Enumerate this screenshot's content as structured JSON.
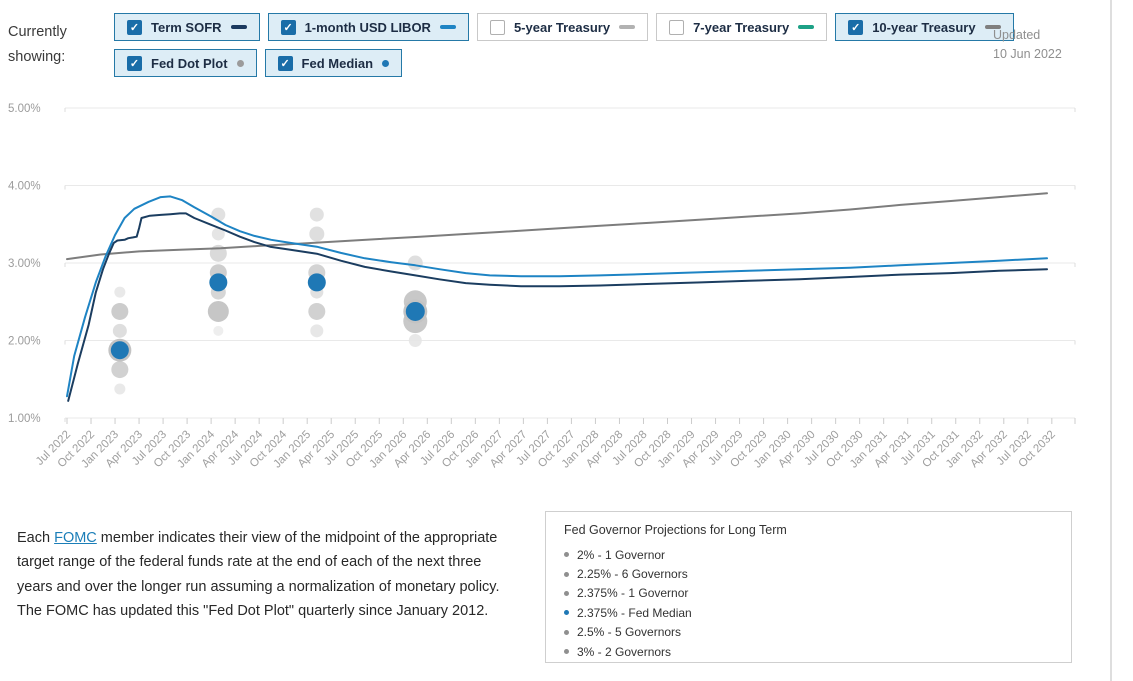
{
  "header": {
    "showing_label": "Currently showing:",
    "updated_label": "Updated",
    "updated_date": "10 Jun 2022",
    "check_icon": "✓",
    "toggle_rows": [
      [
        {
          "label": "Term SOFR",
          "checked": true,
          "indicator": "dash",
          "color": "#1b3a5f"
        },
        {
          "label": "1-month USD LIBOR",
          "checked": true,
          "indicator": "dash",
          "color": "#1e84c4"
        },
        {
          "label": "5-year Treasury",
          "checked": false,
          "indicator": "dash",
          "color": "#b2b2b2"
        },
        {
          "label": "7-year Treasury",
          "checked": false,
          "indicator": "dash",
          "color": "#1da186"
        },
        {
          "label": "10-year Treasury",
          "checked": true,
          "indicator": "dash",
          "color": "#7f7f7f"
        }
      ],
      [
        {
          "label": "Fed Dot Plot",
          "checked": true,
          "indicator": "dot",
          "color": "#9b9b9b"
        },
        {
          "label": "Fed Median",
          "checked": true,
          "indicator": "dot",
          "color": "#1f78b5"
        }
      ]
    ]
  },
  "chart_data": {
    "type": "line",
    "title": "",
    "xlabel": "",
    "ylabel": "",
    "ylim": [
      1,
      5
    ],
    "grid": true,
    "y_ticks": [
      {
        "v": 5,
        "label": "5.00%"
      },
      {
        "v": 4,
        "label": "4.00%"
      },
      {
        "v": 3,
        "label": "3.00%"
      },
      {
        "v": 2,
        "label": "2.00%"
      },
      {
        "v": 1,
        "label": "1.00%"
      }
    ],
    "x_ticks": [
      "Jul 2022",
      "Oct 2022",
      "Jan 2023",
      "Apr 2023",
      "Jul 2023",
      "Oct 2023",
      "Jan 2024",
      "Apr 2024",
      "Jul 2024",
      "Oct 2024",
      "Jan 2025",
      "Apr 2025",
      "Jul 2025",
      "Oct 2025",
      "Jan 2026",
      "Apr 2026",
      "Jul 2026",
      "Oct 2026",
      "Jan 2027",
      "Apr 2027",
      "Jul 2027",
      "Oct 2027",
      "Jan 2028",
      "Apr 2028",
      "Jul 2028",
      "Oct 2028",
      "Jan 2029",
      "Apr 2029",
      "Jul 2029",
      "Oct 2029",
      "Jan 2030",
      "Apr 2030",
      "Jul 2030",
      "Oct 2030",
      "Jan 2031",
      "Apr 2031",
      "Jul 2031",
      "Oct 2031",
      "Jan 2032",
      "Apr 2032",
      "Jul 2032",
      "Oct 2032"
    ],
    "series": [
      {
        "name": "10-year Treasury",
        "color": "#7d7d7d",
        "points": [
          [
            0,
            3.05
          ],
          [
            1.4,
            3.11
          ],
          [
            3,
            3.15
          ],
          [
            4.7,
            3.17
          ],
          [
            6.4,
            3.19
          ],
          [
            8,
            3.22
          ],
          [
            9.7,
            3.25
          ],
          [
            11.4,
            3.28
          ],
          [
            13,
            3.31
          ],
          [
            14.7,
            3.34
          ],
          [
            16.4,
            3.37
          ],
          [
            18,
            3.4
          ],
          [
            20.1,
            3.44
          ],
          [
            22.2,
            3.48
          ],
          [
            24.3,
            3.52
          ],
          [
            26.4,
            3.56
          ],
          [
            28.4,
            3.6
          ],
          [
            30.5,
            3.64
          ],
          [
            32.6,
            3.69
          ],
          [
            34.7,
            3.75
          ],
          [
            36.8,
            3.8
          ],
          [
            38.8,
            3.85
          ],
          [
            40.8,
            3.9
          ]
        ]
      },
      {
        "name": "1-month USD LIBOR",
        "color": "#1e84c4",
        "points": [
          [
            0,
            1.28
          ],
          [
            0.3,
            1.8
          ],
          [
            0.75,
            2.3
          ],
          [
            1.2,
            2.75
          ],
          [
            1.6,
            3.08
          ],
          [
            2.0,
            3.36
          ],
          [
            2.4,
            3.58
          ],
          [
            2.8,
            3.7
          ],
          [
            3.4,
            3.79
          ],
          [
            3.9,
            3.85
          ],
          [
            4.3,
            3.86
          ],
          [
            4.8,
            3.81
          ],
          [
            5.3,
            3.72
          ],
          [
            6.0,
            3.6
          ],
          [
            6.6,
            3.49
          ],
          [
            7.2,
            3.41
          ],
          [
            7.8,
            3.35
          ],
          [
            8.5,
            3.3
          ],
          [
            9.3,
            3.26
          ],
          [
            10.4,
            3.21
          ],
          [
            11.4,
            3.13
          ],
          [
            12.4,
            3.06
          ],
          [
            13.5,
            3.01
          ],
          [
            14.5,
            2.97
          ],
          [
            15.5,
            2.92
          ],
          [
            16.6,
            2.87
          ],
          [
            17.6,
            2.84
          ],
          [
            18.9,
            2.83
          ],
          [
            20.5,
            2.83
          ],
          [
            22.2,
            2.84
          ],
          [
            24.3,
            2.86
          ],
          [
            26.4,
            2.88
          ],
          [
            28.4,
            2.9
          ],
          [
            30.5,
            2.92
          ],
          [
            32.6,
            2.94
          ],
          [
            34.7,
            2.97
          ],
          [
            36.8,
            3.0
          ],
          [
            38.8,
            3.03
          ],
          [
            40.8,
            3.06
          ]
        ]
      },
      {
        "name": "Term SOFR",
        "color": "#1b3d60",
        "points": [
          [
            0.05,
            1.22
          ],
          [
            0.45,
            1.7
          ],
          [
            0.9,
            2.2
          ],
          [
            1.2,
            2.62
          ],
          [
            1.5,
            2.92
          ],
          [
            1.75,
            3.12
          ],
          [
            1.95,
            3.26
          ],
          [
            2.1,
            3.29
          ],
          [
            2.4,
            3.3
          ],
          [
            2.55,
            3.32
          ],
          [
            2.75,
            3.33
          ],
          [
            2.9,
            3.34
          ],
          [
            3.0,
            3.45
          ],
          [
            3.1,
            3.58
          ],
          [
            3.45,
            3.61
          ],
          [
            3.9,
            3.62
          ],
          [
            4.3,
            3.63
          ],
          [
            4.7,
            3.64
          ],
          [
            4.95,
            3.64
          ],
          [
            5.3,
            3.58
          ],
          [
            5.95,
            3.5
          ],
          [
            6.6,
            3.42
          ],
          [
            7.2,
            3.34
          ],
          [
            7.8,
            3.27
          ],
          [
            8.45,
            3.21
          ],
          [
            9.3,
            3.17
          ],
          [
            10.4,
            3.12
          ],
          [
            11.4,
            3.03
          ],
          [
            12.4,
            2.95
          ],
          [
            13.5,
            2.89
          ],
          [
            14.5,
            2.84
          ],
          [
            15.5,
            2.79
          ],
          [
            16.6,
            2.74
          ],
          [
            17.6,
            2.72
          ],
          [
            18.9,
            2.7
          ],
          [
            20.5,
            2.7
          ],
          [
            22.2,
            2.71
          ],
          [
            24.3,
            2.73
          ],
          [
            26.4,
            2.75
          ],
          [
            28.4,
            2.77
          ],
          [
            30.5,
            2.79
          ],
          [
            32.6,
            2.82
          ],
          [
            34.7,
            2.85
          ],
          [
            36.8,
            2.87
          ],
          [
            38.8,
            2.9
          ],
          [
            40.8,
            2.92
          ]
        ]
      }
    ],
    "dot_plot": {
      "median_color": "#1f78b5",
      "ring_color": "#c3c3c3",
      "columns": [
        {
          "label": "Jan 2023",
          "t": 2.2,
          "dots": [
            {
              "v": 2.625,
              "r": 5.5,
              "c": "#e7e7e7"
            },
            {
              "v": 2.375,
              "r": 8.5,
              "c": "#c6c6c6"
            },
            {
              "v": 2.125,
              "r": 7,
              "c": "#dadada"
            },
            {
              "v": 1.625,
              "r": 8.5,
              "c": "#cccccc"
            },
            {
              "v": 1.375,
              "r": 5.5,
              "c": "#e7e7e7"
            },
            {
              "v": 1.875,
              "r": 9,
              "median": true,
              "ring": true
            }
          ]
        },
        {
          "label": "Jan 2024",
          "t": 6.3,
          "dots": [
            {
              "v": 3.625,
              "r": 7,
              "c": "#dedede"
            },
            {
              "v": 3.375,
              "r": 6.5,
              "c": "#e2e2e2"
            },
            {
              "v": 3.125,
              "r": 8.5,
              "c": "#d6d6d6"
            },
            {
              "v": 2.875,
              "r": 8.5,
              "c": "#c9c9c9"
            },
            {
              "v": 2.625,
              "r": 7.5,
              "c": "#d2d2d2"
            },
            {
              "v": 2.375,
              "r": 10.5,
              "c": "#c0c0c0"
            },
            {
              "v": 2.125,
              "r": 5,
              "c": "#ececec"
            },
            {
              "v": 2.75,
              "r": 9,
              "median": true,
              "ring": false
            }
          ]
        },
        {
          "label": "Jan 2025",
          "t": 10.4,
          "dots": [
            {
              "v": 3.625,
              "r": 7,
              "c": "#dedede"
            },
            {
              "v": 3.375,
              "r": 7.5,
              "c": "#dadada"
            },
            {
              "v": 2.875,
              "r": 8.5,
              "c": "#cecece"
            },
            {
              "v": 2.625,
              "r": 6.5,
              "c": "#dedede"
            },
            {
              "v": 2.375,
              "r": 8.5,
              "c": "#cccccc"
            },
            {
              "v": 2.125,
              "r": 6.5,
              "c": "#e4e4e4"
            },
            {
              "v": 2.75,
              "r": 9,
              "median": true,
              "ring": false
            }
          ]
        },
        {
          "label": "Long Term",
          "t": 14.5,
          "dots": [
            {
              "v": 3.0,
              "r": 7.5,
              "c": "#dcdcdc"
            },
            {
              "v": 2.5,
              "r": 11.5,
              "c": "#c2c2c2"
            },
            {
              "v": 2.25,
              "r": 12,
              "c": "#c2c2c2"
            },
            {
              "v": 2.0,
              "r": 6.5,
              "c": "#e6e6e6"
            },
            {
              "v": 2.375,
              "r": 9.5,
              "median": true,
              "ring": true
            }
          ]
        }
      ]
    }
  },
  "footnote": {
    "pre": "Each ",
    "link": "FOMC",
    "post": " member indicates their view of the midpoint of the appropriate target range of the federal funds rate at the end of each of the next three years and over the longer run assuming a normalization of monetary policy. The FOMC has updated this \"Fed Dot Plot\" quarterly since January 2012."
  },
  "legend": {
    "title": "Fed Governor Projections for Long Term",
    "items": [
      {
        "label": "2% - 1 Governor",
        "color": "#8f8f8f"
      },
      {
        "label": "2.25% - 6 Governors",
        "color": "#8f8f8f"
      },
      {
        "label": "2.375% - 1 Governor",
        "color": "#8f8f8f"
      },
      {
        "label": "2.375% - Fed Median",
        "color": "#1f78b5"
      },
      {
        "label": "2.5% - 5 Governors",
        "color": "#8f8f8f"
      },
      {
        "label": "3% - 2 Governors",
        "color": "#8f8f8f"
      }
    ]
  }
}
